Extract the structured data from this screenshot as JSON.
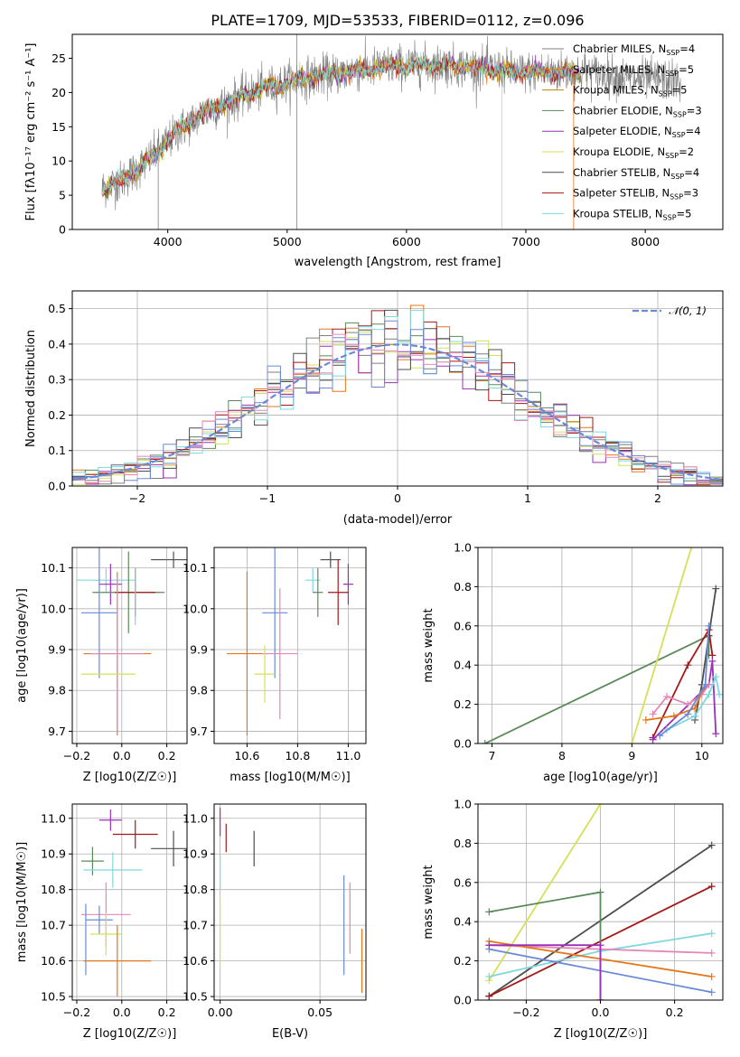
{
  "colors": {
    "chabrier_miles": "#7f7f7f",
    "salpeter_miles": "#e6761b",
    "kroupa_miles": "#b8860b",
    "chabrier_elodie": "#5a8a5a",
    "salpeter_elodie": "#9b30b8",
    "kroupa_elodie": "#d4e157",
    "chabrier_stelib": "#4d4d4d",
    "salpeter_stelib": "#a51818",
    "kroupa_stelib": "#7fd8de",
    "blue": "#6a8ad8",
    "pink": "#e486b8",
    "normal": "#6a8ad8"
  },
  "chart_data": [
    {
      "id": "spectrum",
      "type": "line",
      "title": "PLATE=1709, MJD=53533, FIBERID=0112, z=0.096",
      "xlabel": "wavelength [Angstrom, rest frame]",
      "ylabel": "Flux [fλ10⁻¹⁷ erg cm⁻² s⁻¹ A⁻¹]",
      "xlim": [
        3200,
        8650
      ],
      "ylim": [
        0,
        28.5
      ],
      "xticks": [
        4000,
        5000,
        6000,
        7000,
        8000
      ],
      "yticks": [
        0,
        5,
        10,
        15,
        20,
        25
      ],
      "grid": false,
      "legend_position": "right",
      "legend": [
        {
          "label": "Chabrier MILES, N_SSP=4",
          "main": "Chabrier MILES, N",
          "sub": "SSP",
          "tail": "=4",
          "color": "#7f7f7f"
        },
        {
          "label": "Salpeter MILES, N_SSP=5",
          "main": "Salpeter MILES, N",
          "sub": "SSP",
          "tail": "=5",
          "color": "#e6761b"
        },
        {
          "label": "Kroupa MILES, N_SSP=5",
          "main": "Kroupa MILES, N",
          "sub": "SSP",
          "tail": "=5",
          "color": "#b8860b"
        },
        {
          "label": "Chabrier ELODIE, N_SSP=3",
          "main": "Chabrier ELODIE, N",
          "sub": "SSP",
          "tail": "=3",
          "color": "#5a8a5a"
        },
        {
          "label": "Salpeter ELODIE, N_SSP=4",
          "main": "Salpeter ELODIE, N",
          "sub": "SSP",
          "tail": "=4",
          "color": "#9b30b8"
        },
        {
          "label": "Kroupa ELODIE, N_SSP=2",
          "main": "Kroupa ELODIE, N",
          "sub": "SSP",
          "tail": "=2",
          "color": "#d4e157"
        },
        {
          "label": "Chabrier STELIB, N_SSP=4",
          "main": "Chabrier STELIB, N",
          "sub": "SSP",
          "tail": "=4",
          "color": "#4d4d4d"
        },
        {
          "label": "Salpeter STELIB, N_SSP=3",
          "main": "Salpeter STELIB, N",
          "sub": "SSP",
          "tail": "=3",
          "color": "#a51818"
        },
        {
          "label": "Kroupa STELIB, N_SSP=5",
          "main": "Kroupa STELIB, N",
          "sub": "SSP",
          "tail": "=5",
          "color": "#7fd8de"
        }
      ],
      "continuum": {
        "x": [
          3450,
          3600,
          3800,
          3950,
          4100,
          4300,
          4500,
          4700,
          4900,
          5100,
          5300,
          5500,
          5700,
          5900,
          6100,
          6300,
          6500,
          6700,
          6900,
          7100,
          7300,
          7500,
          7700,
          7900,
          8100,
          8300
        ],
        "y": [
          6,
          7,
          9.5,
          12,
          14.5,
          17,
          18.5,
          20,
          21,
          22,
          22.5,
          23,
          23.5,
          24,
          24,
          24,
          23.8,
          23.5,
          23,
          23,
          23,
          23,
          22.5,
          22,
          22,
          21.5
        ]
      },
      "model_range": [
        3450,
        7450
      ],
      "data_range": [
        3450,
        8300
      ]
    },
    {
      "id": "residuals",
      "type": "histogram",
      "xlabel": "(data-model)/error",
      "ylabel": "Normed distribution",
      "xlim": [
        -2.5,
        2.5
      ],
      "ylim": [
        0,
        0.55
      ],
      "xticks": [
        -2,
        -1,
        0,
        1,
        2
      ],
      "yticks": [
        0,
        0.1,
        0.2,
        0.3,
        0.4,
        0.5
      ],
      "grid": true,
      "legend_position": "top-right",
      "legend": [
        {
          "label": "𝒩(0, 1)",
          "color": "#6a8ad8"
        }
      ],
      "bin_width": 0.1,
      "base_curve": "normal(0,1)",
      "series_colors": [
        "#7f7f7f",
        "#e6761b",
        "#5a8a5a",
        "#9b30b8",
        "#d4e157",
        "#4d4d4d",
        "#a51818",
        "#7fd8de",
        "#6a8ad8",
        "#e486b8"
      ]
    },
    {
      "id": "age_vs_z",
      "type": "errorbar",
      "xlabel": "Z [log10(Z/Z☉)]",
      "ylabel": "age [log10(age/yr)]",
      "xlim": [
        -0.22,
        0.29
      ],
      "ylim": [
        9.67,
        10.15
      ],
      "xticks": [
        -0.2,
        0.0,
        0.2
      ],
      "yticks": [
        9.7,
        9.8,
        9.9,
        10.0,
        10.1
      ],
      "grid": true,
      "points": [
        {
          "x": 0.23,
          "y": 10.12,
          "xerr": 0.1,
          "yerr": 0.02,
          "color": "#4d4d4d"
        },
        {
          "x": -0.07,
          "y": 10.07,
          "xerr": 0.13,
          "yerr": 0.03,
          "color": "#7fd8de"
        },
        {
          "x": -0.05,
          "y": 10.06,
          "xerr": 0.05,
          "yerr": 0.05,
          "color": "#9b30b8"
        },
        {
          "x": 0.03,
          "y": 10.04,
          "xerr": 0.16,
          "yerr": 0.1,
          "color": "#5a8a5a"
        },
        {
          "x": 0.06,
          "y": 10.04,
          "xerr": 0.09,
          "yerr": 0.06,
          "color": "#a51818"
        },
        {
          "x": 0.06,
          "y": 10.03,
          "xerr": 0.001,
          "yerr": 0.07,
          "color": "#7fd8de"
        },
        {
          "x": -0.1,
          "y": 9.99,
          "xerr": 0.08,
          "yerr": 0.16,
          "color": "#6a8ad8"
        },
        {
          "x": -0.02,
          "y": 9.89,
          "xerr": 0.15,
          "yerr": 0.2,
          "color": "#e6761b"
        },
        {
          "x": -0.02,
          "y": 9.89,
          "xerr": 0.12,
          "yerr": 0.19,
          "color": "#e486b8"
        },
        {
          "x": -0.06,
          "y": 9.84,
          "xerr": 0.12,
          "yerr": 0.001,
          "color": "#d4e157"
        }
      ]
    },
    {
      "id": "age_vs_mass",
      "type": "errorbar",
      "xlabel": "mass [log10(M/M☉)]",
      "ylabel": "",
      "xlim": [
        10.47,
        11.07
      ],
      "ylim": [
        9.67,
        10.15
      ],
      "xticks": [
        10.6,
        10.8,
        11.0
      ],
      "yticks": [
        9.7,
        9.8,
        9.9,
        10.0,
        10.1
      ],
      "grid": true,
      "points": [
        {
          "x": 10.93,
          "y": 10.12,
          "xerr": 0.04,
          "yerr": 0.02,
          "color": "#4d4d4d"
        },
        {
          "x": 10.86,
          "y": 10.07,
          "xerr": 0.03,
          "yerr": 0.03,
          "color": "#7fd8de"
        },
        {
          "x": 11.0,
          "y": 10.06,
          "xerr": 0.02,
          "yerr": 0.05,
          "color": "#9b30b8"
        },
        {
          "x": 10.88,
          "y": 10.04,
          "xerr": 0.02,
          "yerr": 0.06,
          "color": "#5a8a5a"
        },
        {
          "x": 10.96,
          "y": 10.04,
          "xerr": 0.04,
          "yerr": 0.08,
          "color": "#a51818"
        },
        {
          "x": 10.71,
          "y": 9.99,
          "xerr": 0.05,
          "yerr": 0.16,
          "color": "#6a8ad8"
        },
        {
          "x": 10.6,
          "y": 9.89,
          "xerr": 0.08,
          "yerr": 0.2,
          "color": "#e6761b"
        },
        {
          "x": 10.73,
          "y": 9.89,
          "xerr": 0.07,
          "yerr": 0.16,
          "color": "#e486b8"
        },
        {
          "x": 10.67,
          "y": 9.84,
          "xerr": 0.04,
          "yerr": 0.07,
          "color": "#d4e157"
        }
      ]
    },
    {
      "id": "weight_vs_age",
      "type": "line",
      "xlabel": "age [log10(age/yr)]",
      "ylabel": "mass weight",
      "xlim": [
        6.8,
        10.3
      ],
      "ylim": [
        0,
        1
      ],
      "xticks": [
        7,
        8,
        9,
        10
      ],
      "yticks": [
        0.0,
        0.2,
        0.4,
        0.6,
        0.8,
        1.0
      ],
      "grid": true,
      "series": [
        {
          "color": "#5a8a5a",
          "x": [
            6.9,
            10.1,
            10.1
          ],
          "y": [
            0.0,
            0.55,
            0.45
          ]
        },
        {
          "color": "#d4e157",
          "x": [
            9.0,
            9.85
          ],
          "y": [
            0.0,
            1.0
          ]
        },
        {
          "color": "#4d4d4d",
          "x": [
            9.9,
            10.0,
            10.1,
            10.2
          ],
          "y": [
            0.12,
            0.3,
            0.55,
            0.79
          ]
        },
        {
          "color": "#a51818",
          "x": [
            9.3,
            9.8,
            10.1,
            10.15
          ],
          "y": [
            0.03,
            0.4,
            0.58,
            0.45
          ]
        },
        {
          "color": "#9b30b8",
          "x": [
            9.3,
            10.1,
            10.15,
            10.2
          ],
          "y": [
            0.02,
            0.3,
            0.42,
            0.05
          ]
        },
        {
          "color": "#e486b8",
          "x": [
            9.3,
            9.5,
            9.8,
            10.0,
            10.1
          ],
          "y": [
            0.15,
            0.24,
            0.2,
            0.25,
            0.3
          ]
        },
        {
          "color": "#e6761b",
          "x": [
            9.2,
            9.6,
            9.9,
            10.05
          ],
          "y": [
            0.12,
            0.14,
            0.18,
            0.3
          ]
        },
        {
          "color": "#7fd8de",
          "x": [
            9.5,
            9.9,
            10.1,
            10.2,
            10.25
          ],
          "y": [
            0.07,
            0.14,
            0.25,
            0.34,
            0.25
          ]
        },
        {
          "color": "#6a8ad8",
          "x": [
            9.4,
            9.8,
            10.05,
            10.1
          ],
          "y": [
            0.04,
            0.15,
            0.3,
            0.6
          ]
        }
      ]
    },
    {
      "id": "mass_vs_z",
      "type": "errorbar",
      "xlabel": "Z [log10(Z/Z☉)]",
      "ylabel": "mass [log10(M/M☉)]",
      "xlim": [
        -0.22,
        0.29
      ],
      "ylim": [
        10.49,
        11.04
      ],
      "xticks": [
        -0.2,
        0.0,
        0.2
      ],
      "yticks": [
        10.5,
        10.6,
        10.7,
        10.8,
        10.9,
        11.0
      ],
      "grid": true,
      "points": [
        {
          "x": -0.05,
          "y": 10.995,
          "xerr": 0.05,
          "yerr": 0.03,
          "color": "#9b30b8"
        },
        {
          "x": 0.06,
          "y": 10.955,
          "xerr": 0.1,
          "yerr": 0.04,
          "color": "#a51818"
        },
        {
          "x": 0.23,
          "y": 10.915,
          "xerr": 0.1,
          "yerr": 0.05,
          "color": "#4d4d4d"
        },
        {
          "x": -0.13,
          "y": 10.88,
          "xerr": 0.05,
          "yerr": 0.04,
          "color": "#5a8a5a"
        },
        {
          "x": -0.04,
          "y": 10.855,
          "xerr": 0.13,
          "yerr": 0.05,
          "color": "#7fd8de"
        },
        {
          "x": -0.07,
          "y": 10.73,
          "xerr": 0.11,
          "yerr": 0.09,
          "color": "#e486b8"
        },
        {
          "x": -0.1,
          "y": 10.715,
          "xerr": 0.06,
          "yerr": 0.04,
          "color": "#6a8ad8"
        },
        {
          "x": -0.16,
          "y": 10.66,
          "xerr": 0.001,
          "yerr": 0.1,
          "color": "#6a8ad8"
        },
        {
          "x": -0.07,
          "y": 10.675,
          "xerr": 0.07,
          "yerr": 0.06,
          "color": "#d4e157"
        },
        {
          "x": -0.02,
          "y": 10.6,
          "xerr": 0.15,
          "yerr": 0.1,
          "color": "#e6761b"
        }
      ]
    },
    {
      "id": "mass_vs_ebv",
      "type": "errorbar",
      "xlabel": "E(B-V)",
      "ylabel": "",
      "xlim": [
        -0.003,
        0.073
      ],
      "ylim": [
        10.49,
        11.04
      ],
      "xticks": [
        0.0,
        0.05
      ],
      "xtick_labels": [
        "0.00",
        "0.05"
      ],
      "yticks": [
        10.5,
        10.6,
        10.7,
        10.8,
        10.9,
        11.0
      ],
      "grid": true,
      "points": [
        {
          "x": 0.0,
          "y": 10.99,
          "xerr": 0,
          "yerr": 0.04,
          "color": "#9b30b8"
        },
        {
          "x": 0.003,
          "y": 10.945,
          "xerr": 0,
          "yerr": 0.04,
          "color": "#a51818"
        },
        {
          "x": 0.017,
          "y": 10.915,
          "xerr": 0,
          "yerr": 0.05,
          "color": "#4d4d4d"
        },
        {
          "x": 0.0,
          "y": 10.85,
          "xerr": 0,
          "yerr": 0.05,
          "color": "#7fd8de"
        },
        {
          "x": 0.062,
          "y": 10.7,
          "xerr": 0,
          "yerr": 0.14,
          "color": "#6a8ad8"
        },
        {
          "x": 0.065,
          "y": 10.72,
          "xerr": 0,
          "yerr": 0.1,
          "color": "#e486b8"
        },
        {
          "x": 0.071,
          "y": 10.6,
          "xerr": 0,
          "yerr": 0.09,
          "color": "#e6761b"
        },
        {
          "x": 0.0,
          "y": 10.68,
          "xerr": 0,
          "yerr": 0.1,
          "color": "#d4e157"
        }
      ]
    },
    {
      "id": "weight_vs_z",
      "type": "line",
      "xlabel": "Z [log10(Z/Z☉)]",
      "ylabel": "mass weight",
      "xlim": [
        -0.33,
        0.33
      ],
      "ylim": [
        0,
        1
      ],
      "xticks": [
        -0.2,
        0.0,
        0.2
      ],
      "yticks": [
        0.0,
        0.2,
        0.4,
        0.6,
        0.8,
        1.0
      ],
      "grid": true,
      "series": [
        {
          "color": "#d4e157",
          "x": [
            -0.3,
            0.0
          ],
          "y": [
            0.1,
            1.0
          ]
        },
        {
          "color": "#4d4d4d",
          "x": [
            -0.3,
            0.3
          ],
          "y": [
            0.02,
            0.79
          ]
        },
        {
          "color": "#a51818",
          "x": [
            -0.3,
            0.3
          ],
          "y": [
            0.02,
            0.58
          ]
        },
        {
          "color": "#5a8a5a",
          "x": [
            -0.3,
            0.0,
            0.0
          ],
          "y": [
            0.45,
            0.55,
            0.0
          ]
        },
        {
          "color": "#7fd8de",
          "x": [
            -0.3,
            0.0,
            0.3
          ],
          "y": [
            0.12,
            0.25,
            0.34
          ]
        },
        {
          "color": "#e486b8",
          "x": [
            -0.3,
            0.0,
            0.3
          ],
          "y": [
            0.28,
            0.26,
            0.24
          ]
        },
        {
          "color": "#e6761b",
          "x": [
            -0.3,
            0.3
          ],
          "y": [
            0.3,
            0.12
          ]
        },
        {
          "color": "#6a8ad8",
          "x": [
            -0.3,
            0.3
          ],
          "y": [
            0.26,
            0.04
          ]
        },
        {
          "color": "#9b30b8",
          "x": [
            -0.3,
            0.0,
            0.0
          ],
          "y": [
            0.28,
            0.28,
            0.0
          ]
        }
      ]
    }
  ]
}
